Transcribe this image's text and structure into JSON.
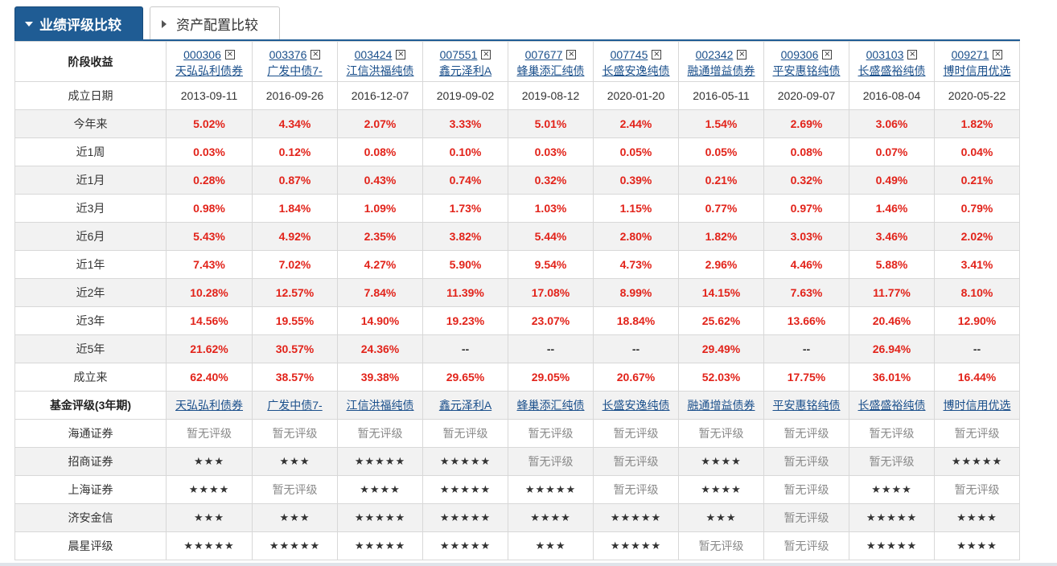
{
  "tabs": {
    "active_label": "业绩评级比较",
    "inactive_label": "资产配置比较"
  },
  "header_label": "阶段收益",
  "funds": [
    {
      "code": "000306",
      "name": "天弘弘利债券"
    },
    {
      "code": "003376",
      "name": "广发中债7-"
    },
    {
      "code": "003424",
      "name": "江信洪福纯债"
    },
    {
      "code": "007551",
      "name": "鑫元泽利A"
    },
    {
      "code": "007677",
      "name": "蜂巢添汇纯债"
    },
    {
      "code": "007745",
      "name": "长盛安逸纯债"
    },
    {
      "code": "002342",
      "name": "融通增益债券"
    },
    {
      "code": "009306",
      "name": "平安惠铭纯债"
    },
    {
      "code": "003103",
      "name": "长盛盛裕纯债"
    },
    {
      "code": "009271",
      "name": "博时信用优选"
    }
  ],
  "remove_glyph": "×",
  "date_row": {
    "label": "成立日期",
    "values": [
      "2013-09-11",
      "2016-09-26",
      "2016-12-07",
      "2019-09-02",
      "2019-08-12",
      "2020-01-20",
      "2016-05-11",
      "2020-09-07",
      "2016-08-04",
      "2020-05-22"
    ]
  },
  "return_rows": [
    {
      "label": "今年来",
      "values": [
        "5.02%",
        "4.34%",
        "2.07%",
        "3.33%",
        "5.01%",
        "2.44%",
        "1.54%",
        "2.69%",
        "3.06%",
        "1.82%"
      ]
    },
    {
      "label": "近1周",
      "values": [
        "0.03%",
        "0.12%",
        "0.08%",
        "0.10%",
        "0.03%",
        "0.05%",
        "0.05%",
        "0.08%",
        "0.07%",
        "0.04%"
      ]
    },
    {
      "label": "近1月",
      "values": [
        "0.28%",
        "0.87%",
        "0.43%",
        "0.74%",
        "0.32%",
        "0.39%",
        "0.21%",
        "0.32%",
        "0.49%",
        "0.21%"
      ]
    },
    {
      "label": "近3月",
      "values": [
        "0.98%",
        "1.84%",
        "1.09%",
        "1.73%",
        "1.03%",
        "1.15%",
        "0.77%",
        "0.97%",
        "1.46%",
        "0.79%"
      ]
    },
    {
      "label": "近6月",
      "values": [
        "5.43%",
        "4.92%",
        "2.35%",
        "3.82%",
        "5.44%",
        "2.80%",
        "1.82%",
        "3.03%",
        "3.46%",
        "2.02%"
      ]
    },
    {
      "label": "近1年",
      "values": [
        "7.43%",
        "7.02%",
        "4.27%",
        "5.90%",
        "9.54%",
        "4.73%",
        "2.96%",
        "4.46%",
        "5.88%",
        "3.41%"
      ]
    },
    {
      "label": "近2年",
      "values": [
        "10.28%",
        "12.57%",
        "7.84%",
        "11.39%",
        "17.08%",
        "8.99%",
        "14.15%",
        "7.63%",
        "11.77%",
        "8.10%"
      ]
    },
    {
      "label": "近3年",
      "values": [
        "14.56%",
        "19.55%",
        "14.90%",
        "19.23%",
        "23.07%",
        "18.84%",
        "25.62%",
        "13.66%",
        "20.46%",
        "12.90%"
      ]
    },
    {
      "label": "近5年",
      "values": [
        "21.62%",
        "30.57%",
        "24.36%",
        "--",
        "--",
        "--",
        "29.49%",
        "--",
        "26.94%",
        "--"
      ]
    },
    {
      "label": "成立来",
      "values": [
        "62.40%",
        "38.57%",
        "39.38%",
        "29.65%",
        "29.05%",
        "20.67%",
        "52.03%",
        "17.75%",
        "36.01%",
        "16.44%"
      ]
    }
  ],
  "rating_header_label": "基金评级(3年期)",
  "rating_rows": [
    {
      "label": "海通证券",
      "values": [
        "暂无评级",
        "暂无评级",
        "暂无评级",
        "暂无评级",
        "暂无评级",
        "暂无评级",
        "暂无评级",
        "暂无评级",
        "暂无评级",
        "暂无评级"
      ]
    },
    {
      "label": "招商证券",
      "values": [
        "★★★",
        "★★★",
        "★★★★★",
        "★★★★★",
        "暂无评级",
        "暂无评级",
        "★★★★",
        "暂无评级",
        "暂无评级",
        "★★★★★"
      ]
    },
    {
      "label": "上海证券",
      "values": [
        "★★★★",
        "暂无评级",
        "★★★★",
        "★★★★★",
        "★★★★★",
        "暂无评级",
        "★★★★",
        "暂无评级",
        "★★★★",
        "暂无评级"
      ]
    },
    {
      "label": "济安金信",
      "values": [
        "★★★",
        "★★★",
        "★★★★★",
        "★★★★★",
        "★★★★",
        "★★★★★",
        "★★★",
        "暂无评级",
        "★★★★★",
        "★★★★"
      ]
    },
    {
      "label": "晨星评级",
      "values": [
        "★★★★★",
        "★★★★★",
        "★★★★★",
        "★★★★★",
        "★★★",
        "★★★★★",
        "暂无评级",
        "暂无评级",
        "★★★★★",
        "★★★★"
      ]
    }
  ],
  "colors": {
    "accent": "#1f5c94",
    "positive": "#e2231a",
    "link": "#1a4f8b",
    "muted": "#8a8a8a",
    "alt_row": "#f2f2f2"
  }
}
